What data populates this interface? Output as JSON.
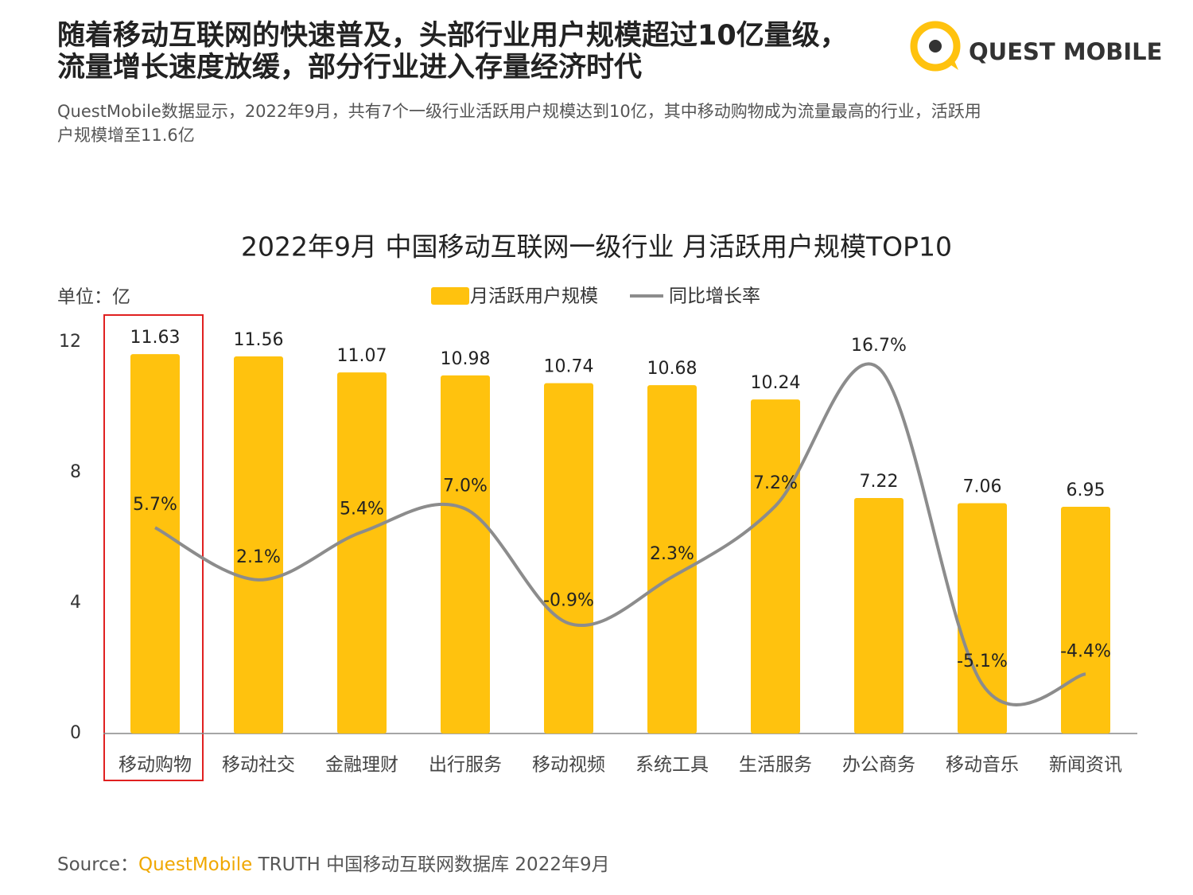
{
  "header": {
    "title": [
      "随着移动互联网的快速普及，头部行业用户规模超过10亿量级，",
      "流量增长速度放缓，部分行业进入存量经济时代"
    ],
    "subtitle": [
      "QuestMobile数据显示，2022年9月，共有7个一级行业活跃用户规模达到10亿，其中移动购物成为流量最高的行业，活跃用",
      "户规模增至11.6亿"
    ],
    "logo": "QUEST MOBILE"
  },
  "chart_data": {
    "type": "bar",
    "title": "2022年9月 中国移动互联网一级行业 月活跃用户规模TOP10",
    "unit_label": "单位：亿",
    "categories": [
      "移动购物",
      "移动社交",
      "金融理财",
      "出行服务",
      "移动视频",
      "系统工具",
      "生活服务",
      "办公商务",
      "移动音乐",
      "新闻资讯"
    ],
    "series": [
      {
        "name": "月活跃用户规模",
        "type": "bar",
        "color": "#FFC20E",
        "values": [
          11.63,
          11.56,
          11.07,
          10.98,
          10.74,
          10.68,
          10.24,
          7.22,
          7.06,
          6.95
        ]
      },
      {
        "name": "同比增长率",
        "type": "line",
        "axis": "y2",
        "color": "#8C8C8C",
        "values": [
          5.7,
          2.1,
          5.4,
          7.0,
          -0.9,
          2.3,
          7.2,
          16.7,
          -5.1,
          -4.4
        ],
        "value_labels": [
          "5.7%",
          "2.1%",
          "5.4%",
          "7.0%",
          "-0.9%",
          "2.3%",
          "7.2%",
          "16.7%",
          "-5.1%",
          "-4.4%"
        ]
      }
    ],
    "ylim": [
      0,
      12
    ],
    "yticks": [
      0,
      4,
      8,
      12
    ],
    "y2lim": [
      -8.5,
      18.5
    ]
  },
  "source": {
    "prefix": "Source：",
    "brand": "QuestMobile",
    "rest": " TRUTH 中国移动互联网数据库 2022年9月"
  }
}
